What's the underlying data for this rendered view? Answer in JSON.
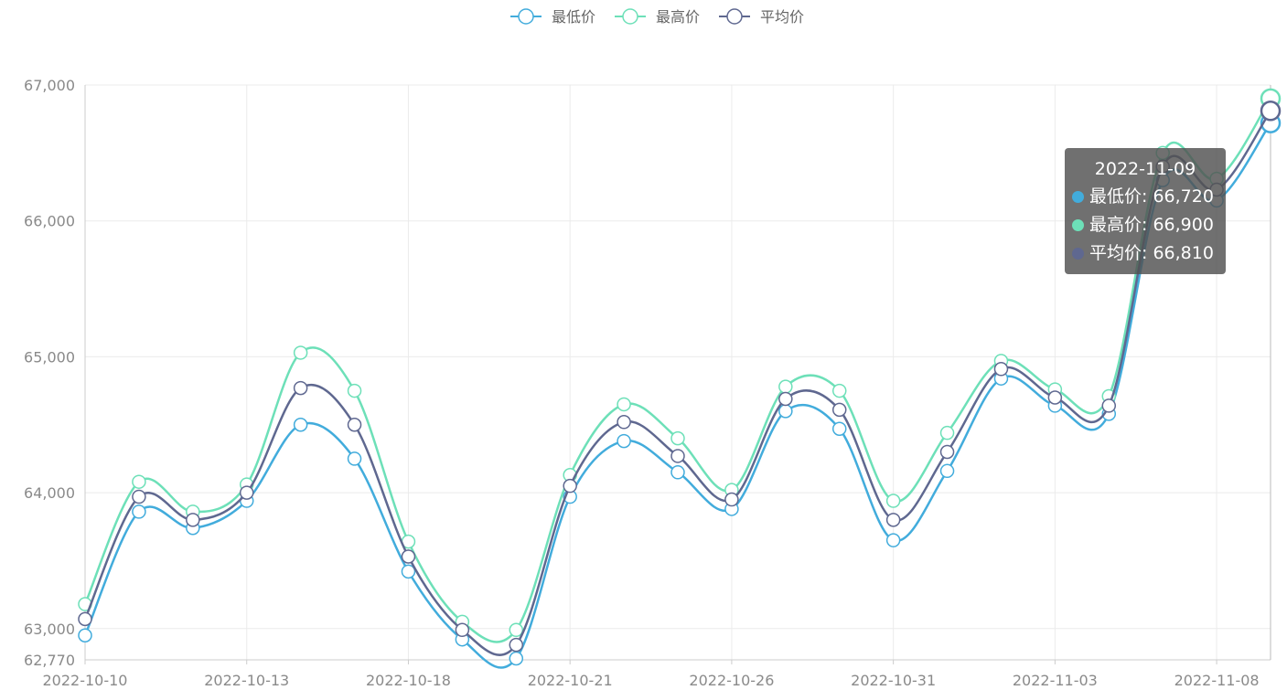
{
  "legend": [
    {
      "name": "最低价",
      "color": "#42acdc"
    },
    {
      "name": "最高价",
      "color": "#6de0b8"
    },
    {
      "name": "平均价",
      "color": "#5f6890"
    }
  ],
  "tooltip": {
    "title": "2022-11-09",
    "rows": [
      {
        "label": "最低价",
        "value": "66,720",
        "color": "#42acdc"
      },
      {
        "label": "最高价",
        "value": "66,900",
        "color": "#6de0b8"
      },
      {
        "label": "平均价",
        "value": "66,810",
        "color": "#5f6890"
      }
    ]
  },
  "chart_data": {
    "type": "line",
    "smooth": true,
    "x": [
      "2022-10-10",
      "2022-10-11",
      "2022-10-12",
      "2022-10-13",
      "2022-10-14",
      "2022-10-17",
      "2022-10-18",
      "2022-10-19",
      "2022-10-20",
      "2022-10-21",
      "2022-10-24",
      "2022-10-25",
      "2022-10-26",
      "2022-10-27",
      "2022-10-28",
      "2022-10-31",
      "2022-11-01",
      "2022-11-02",
      "2022-11-03",
      "2022-11-04",
      "2022-11-07",
      "2022-11-08",
      "2022-11-09"
    ],
    "x_tick_labels": [
      "2022-10-10",
      "2022-10-13",
      "2022-10-18",
      "2022-10-21",
      "2022-10-26",
      "2022-10-31",
      "2022-11-03",
      "2022-11-08"
    ],
    "y_tick_labels": [
      "62,770",
      "63,000",
      "64,000",
      "65,000",
      "66,000",
      "67,000"
    ],
    "ylim": [
      62770,
      67000
    ],
    "grid": true,
    "legend_position": "top-center",
    "highlighted_index": 22,
    "series": [
      {
        "name": "最低价",
        "color": "#42acdc",
        "values": [
          62950,
          63860,
          63740,
          63940,
          64500,
          64250,
          63420,
          62920,
          62780,
          63970,
          64380,
          64150,
          63880,
          64600,
          64470,
          63650,
          64160,
          64840,
          64640,
          64580,
          66300,
          66150,
          66720
        ]
      },
      {
        "name": "最高价",
        "color": "#6de0b8",
        "values": [
          63180,
          64080,
          63860,
          64060,
          65030,
          64750,
          63640,
          63050,
          62990,
          64130,
          64650,
          64400,
          64020,
          64780,
          64750,
          63940,
          64440,
          64970,
          64760,
          64710,
          66500,
          66310,
          66900
        ]
      },
      {
        "name": "平均价",
        "color": "#5f6890",
        "values": [
          63070,
          63970,
          63800,
          64000,
          64770,
          64500,
          63530,
          62990,
          62880,
          64050,
          64520,
          64270,
          63950,
          64690,
          64610,
          63800,
          64300,
          64910,
          64700,
          64640,
          66400,
          66230,
          66810
        ]
      }
    ]
  }
}
